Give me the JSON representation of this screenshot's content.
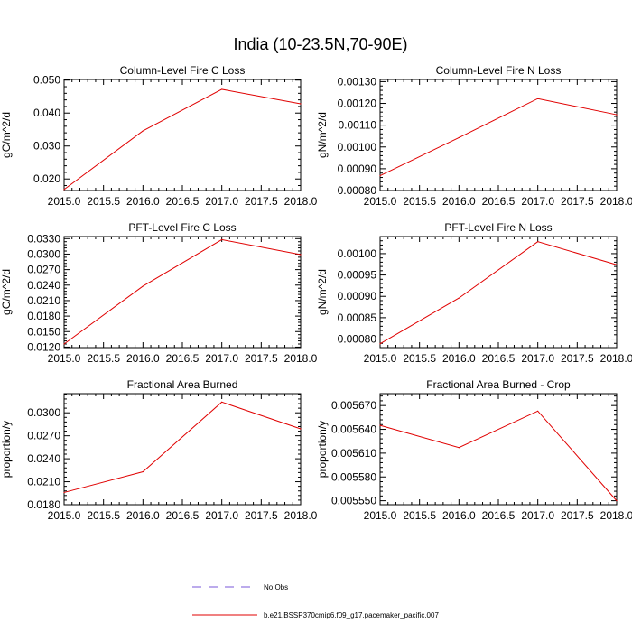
{
  "title": "India (10-23.5N,70-90E)",
  "legend": {
    "placement": "bottom-center",
    "entries": [
      {
        "label": "No Obs",
        "color": "#7a57d8",
        "dash": "dashed"
      },
      {
        "label": "b.e21.BSSP370cmip6.f09_g17.pacemaker_pacific.007",
        "color": "#e00000",
        "dash": "solid"
      }
    ]
  },
  "chart_data": [
    {
      "type": "line",
      "title": "Column-Level Fire C Loss",
      "ylabel": "gC/m^2/d",
      "xlim": [
        2015.0,
        2018.0
      ],
      "ylim": [
        0.0165,
        0.0502
      ],
      "x_ticks": [
        "2015.0",
        "2015.5",
        "2016.0",
        "2016.5",
        "2017.0",
        "2017.5",
        "2018.0"
      ],
      "y_ticks": [
        "0.020",
        "0.030",
        "0.040",
        "0.050"
      ],
      "series": [
        {
          "name": "b.e21.BSSP370cmip6.f09_g17.pacemaker_pacific.007",
          "color": "#e00000",
          "x": [
            2015.0,
            2016.0,
            2017.0,
            2018.0
          ],
          "y": [
            0.0168,
            0.0346,
            0.0472,
            0.0428
          ]
        }
      ]
    },
    {
      "type": "line",
      "title": "Column-Level Fire N Loss",
      "ylabel": "gN/m^2/d",
      "xlim": [
        2015.0,
        2018.0
      ],
      "ylim": [
        0.0008,
        0.00131
      ],
      "x_ticks": [
        "2015.0",
        "2015.5",
        "2016.0",
        "2016.5",
        "2017.0",
        "2017.5",
        "2018.0"
      ],
      "y_ticks": [
        "0.00080",
        "0.00090",
        "0.00100",
        "0.00110",
        "0.00120",
        "0.00130"
      ],
      "series": [
        {
          "name": "b.e21.BSSP370cmip6.f09_g17.pacemaker_pacific.007",
          "color": "#e00000",
          "x": [
            2015.0,
            2016.0,
            2017.0,
            2018.0
          ],
          "y": [
            0.000868,
            0.001043,
            0.001222,
            0.001148
          ]
        }
      ]
    },
    {
      "type": "line",
      "title": "PFT-Level Fire C Loss",
      "ylabel": "gC/m^2/d",
      "xlim": [
        2015.0,
        2018.0
      ],
      "ylim": [
        0.0119,
        0.0334
      ],
      "x_ticks": [
        "2015.0",
        "2015.5",
        "2016.0",
        "2016.5",
        "2017.0",
        "2017.5",
        "2018.0"
      ],
      "y_ticks": [
        "0.0120",
        "0.0150",
        "0.0180",
        "0.0210",
        "0.0240",
        "0.0270",
        "0.0300",
        "0.0330"
      ],
      "series": [
        {
          "name": "b.e21.BSSP370cmip6.f09_g17.pacemaker_pacific.007",
          "color": "#e00000",
          "x": [
            2015.0,
            2016.0,
            2017.0,
            2018.0
          ],
          "y": [
            0.0126,
            0.0238,
            0.0328,
            0.0299
          ]
        }
      ]
    },
    {
      "type": "line",
      "title": "PFT-Level Fire N Loss",
      "ylabel": "gN/m^2/d",
      "xlim": [
        2015.0,
        2018.0
      ],
      "ylim": [
        0.00078,
        0.00104
      ],
      "x_ticks": [
        "2015.0",
        "2015.5",
        "2016.0",
        "2016.5",
        "2017.0",
        "2017.5",
        "2018.0"
      ],
      "y_ticks": [
        "0.00080",
        "0.00085",
        "0.00090",
        "0.00095",
        "0.00100"
      ],
      "series": [
        {
          "name": "b.e21.BSSP370cmip6.f09_g17.pacemaker_pacific.007",
          "color": "#e00000",
          "x": [
            2015.0,
            2016.0,
            2017.0,
            2018.0
          ],
          "y": [
            0.000789,
            0.000896,
            0.001028,
            0.000974
          ]
        }
      ]
    },
    {
      "type": "line",
      "title": "Fractional Area Burned",
      "ylabel": "proportion/y",
      "xlim": [
        2015.0,
        2018.0
      ],
      "ylim": [
        0.018,
        0.0325
      ],
      "x_ticks": [
        "2015.0",
        "2015.5",
        "2016.0",
        "2016.5",
        "2017.0",
        "2017.5",
        "2018.0"
      ],
      "y_ticks": [
        "0.0180",
        "0.0210",
        "0.0240",
        "0.0270",
        "0.0300"
      ],
      "series": [
        {
          "name": "b.e21.BSSP370cmip6.f09_g17.pacemaker_pacific.007",
          "color": "#e00000",
          "x": [
            2015.0,
            2016.0,
            2017.0,
            2018.0
          ],
          "y": [
            0.0196,
            0.0223,
            0.0314,
            0.0279
          ]
        }
      ]
    },
    {
      "type": "line",
      "title": "Fractional Area Burned - Crop",
      "ylabel": "proportion/y",
      "xlim": [
        2015.0,
        2018.0
      ],
      "ylim": [
        0.005545,
        0.005685
      ],
      "x_ticks": [
        "2015.0",
        "2015.5",
        "2016.0",
        "2016.5",
        "2017.0",
        "2017.5",
        "2018.0"
      ],
      "y_ticks": [
        "0.005550",
        "0.005580",
        "0.005610",
        "0.005640",
        "0.005670"
      ],
      "series": [
        {
          "name": "b.e21.BSSP370cmip6.f09_g17.pacemaker_pacific.007",
          "color": "#e00000",
          "x": [
            2015.0,
            2016.0,
            2017.0,
            2018.0
          ],
          "y": [
            0.005645,
            0.005617,
            0.005663,
            0.00555
          ]
        }
      ]
    }
  ]
}
